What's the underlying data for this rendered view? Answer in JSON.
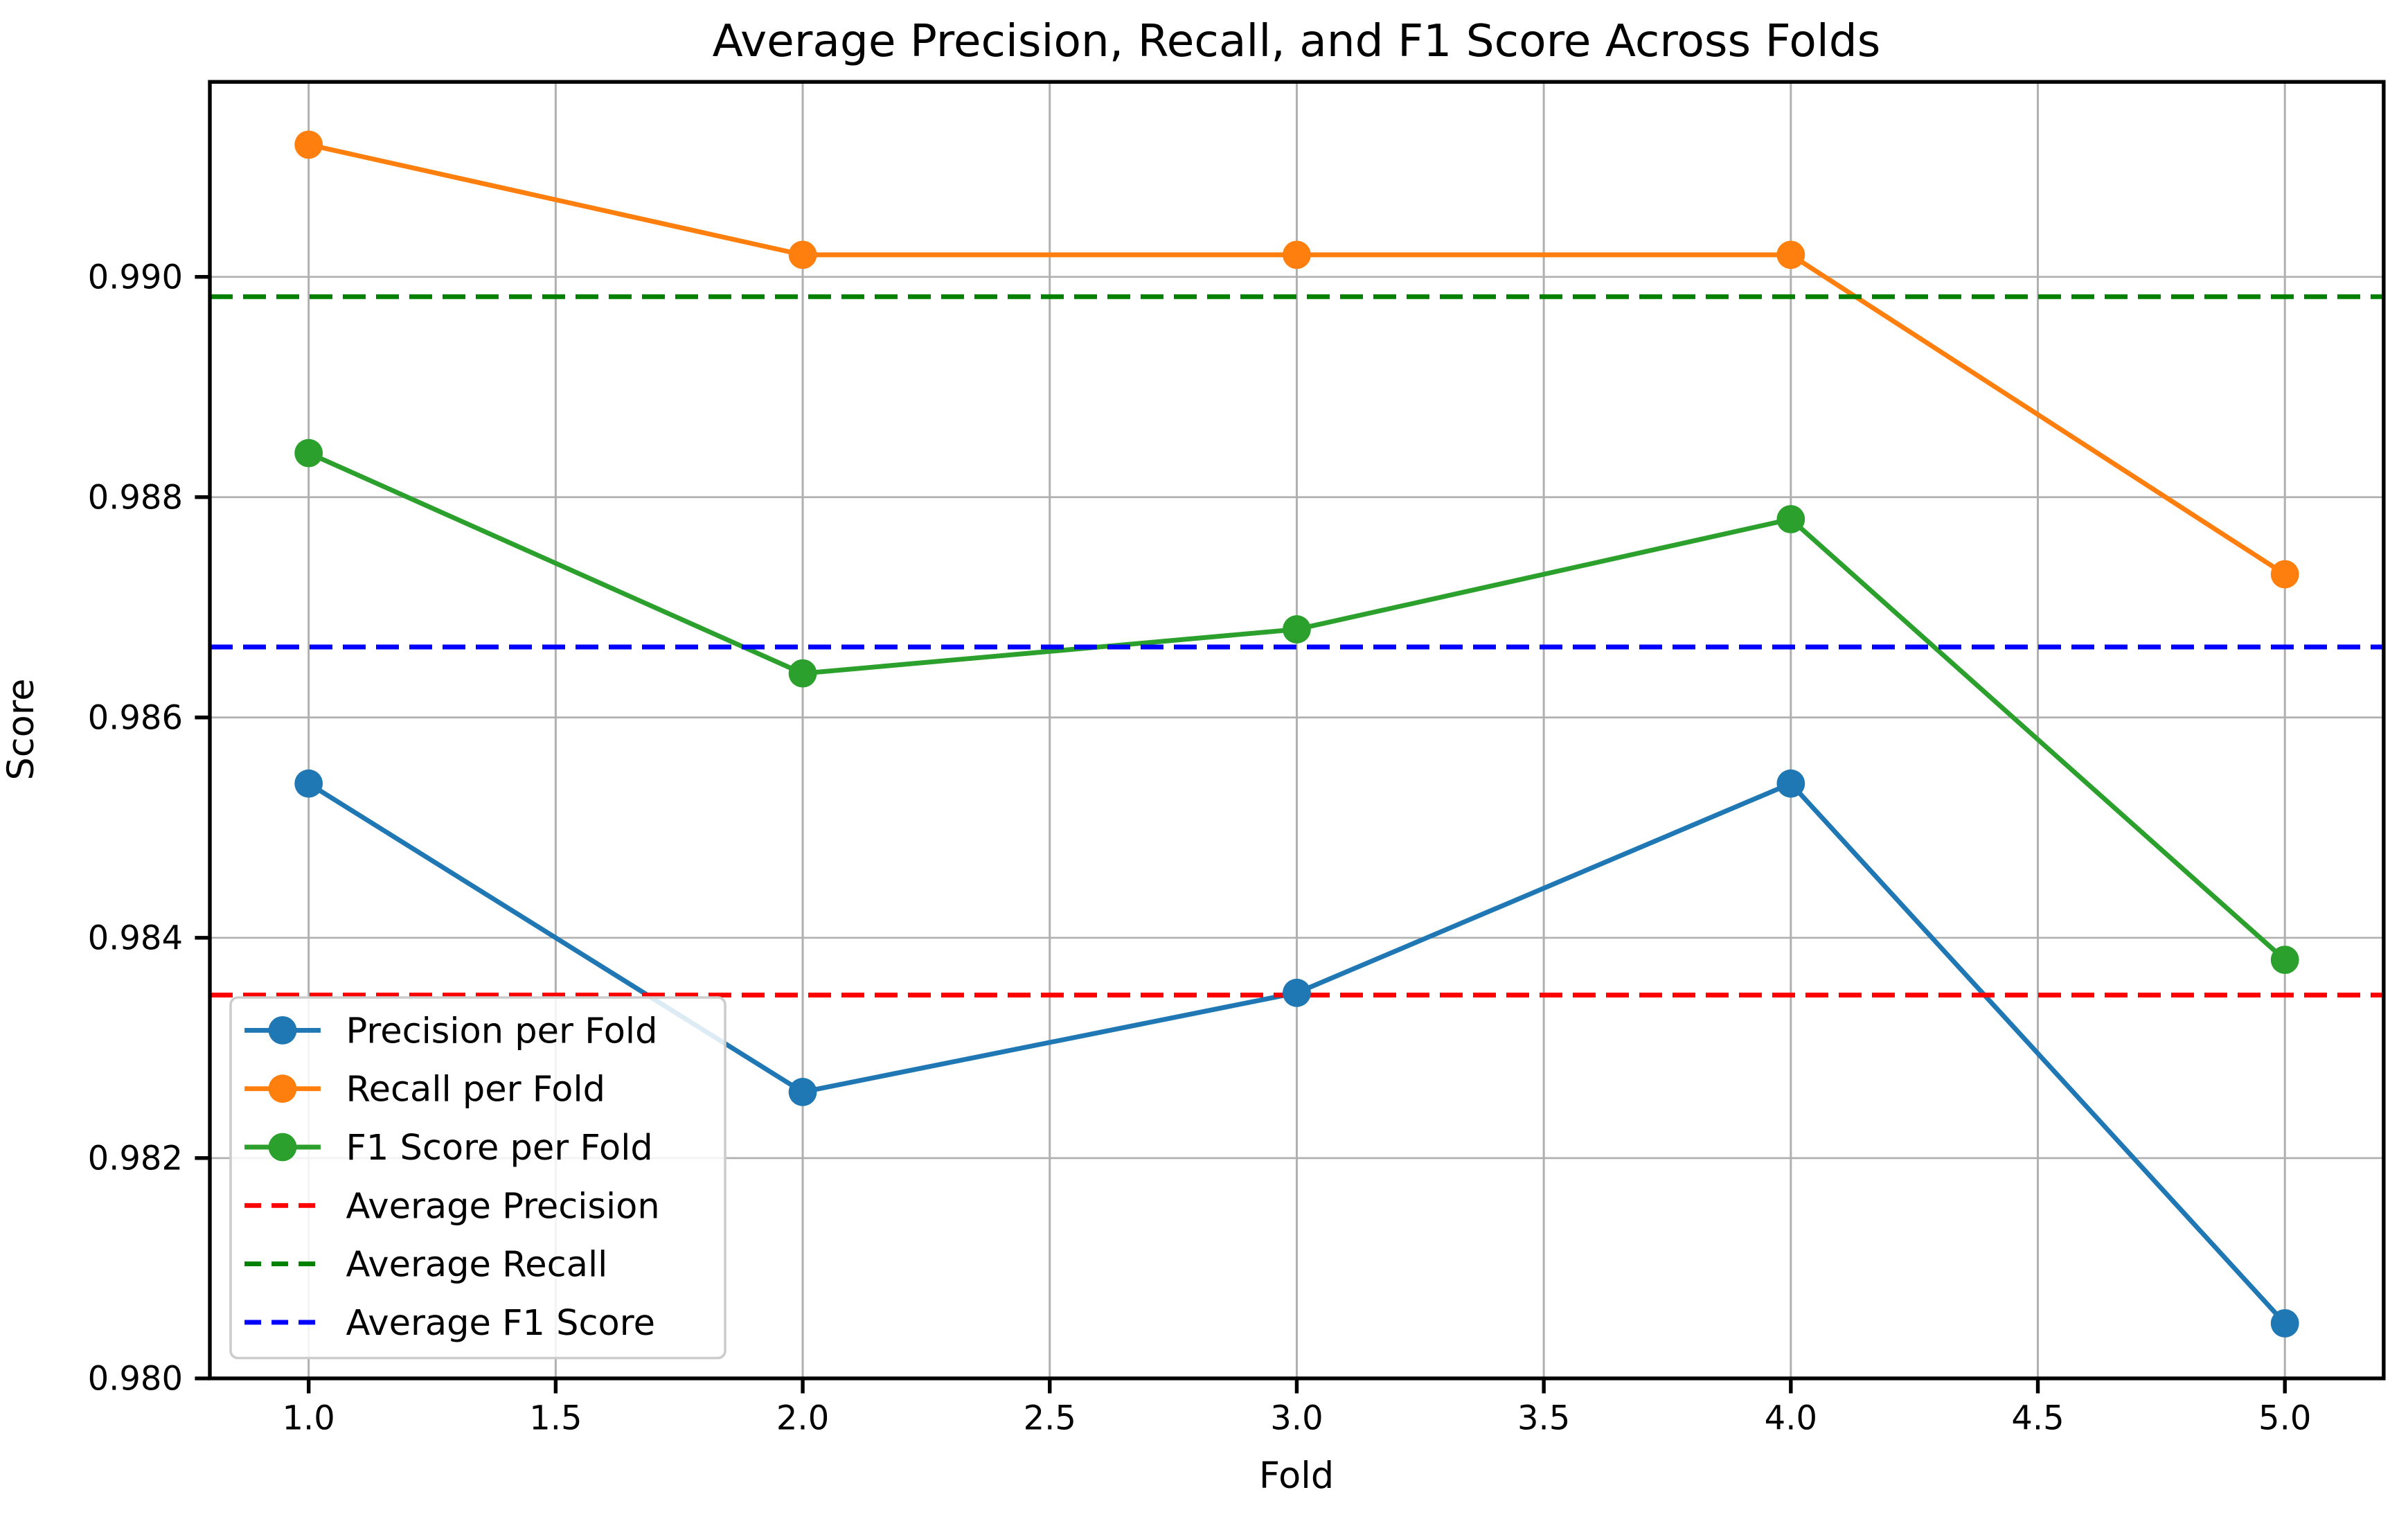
{
  "chart_data": {
    "type": "line",
    "title": "Average Precision, Recall, and F1 Score Across Folds",
    "xlabel": "Fold",
    "ylabel": "Score",
    "x": [
      1.0,
      2.0,
      3.0,
      4.0,
      5.0
    ],
    "series": [
      {
        "name": "Precision per Fold",
        "color": "#1f77b4",
        "style": "solid-marker",
        "values": [
          0.9854,
          0.9826,
          0.9835,
          0.9854,
          0.9805
        ]
      },
      {
        "name": "Recall per Fold",
        "color": "#ff7f0e",
        "style": "solid-marker",
        "values": [
          0.9912,
          0.9902,
          0.9902,
          0.9902,
          0.9873
        ]
      },
      {
        "name": "F1 Score per Fold",
        "color": "#2ca02c",
        "style": "solid-marker",
        "values": [
          0.9884,
          0.9864,
          0.9868,
          0.9878,
          0.9838
        ]
      },
      {
        "name": "Average Precision",
        "color": "#ff0000",
        "style": "dashed-hline",
        "value": 0.98348
      },
      {
        "name": "Average Recall",
        "color": "#008000",
        "style": "dashed-hline",
        "value": 0.98982
      },
      {
        "name": "Average F1 Score",
        "color": "#0000ff",
        "style": "dashed-hline",
        "value": 0.98664
      }
    ],
    "xlim": [
      0.8,
      5.2
    ],
    "ylim": [
      0.98,
      0.99177
    ],
    "xticks": [
      1.0,
      1.5,
      2.0,
      2.5,
      3.0,
      3.5,
      4.0,
      4.5,
      5.0
    ],
    "yticks": [
      0.98,
      0.982,
      0.984,
      0.986,
      0.988,
      0.99
    ],
    "grid": true,
    "legend_position": "lower left",
    "colors": {
      "grid": "#b0b0b0",
      "spine": "#000000",
      "background": "#ffffff",
      "legend_border": "#cccccc",
      "legend_fill": "#ffffff"
    }
  }
}
